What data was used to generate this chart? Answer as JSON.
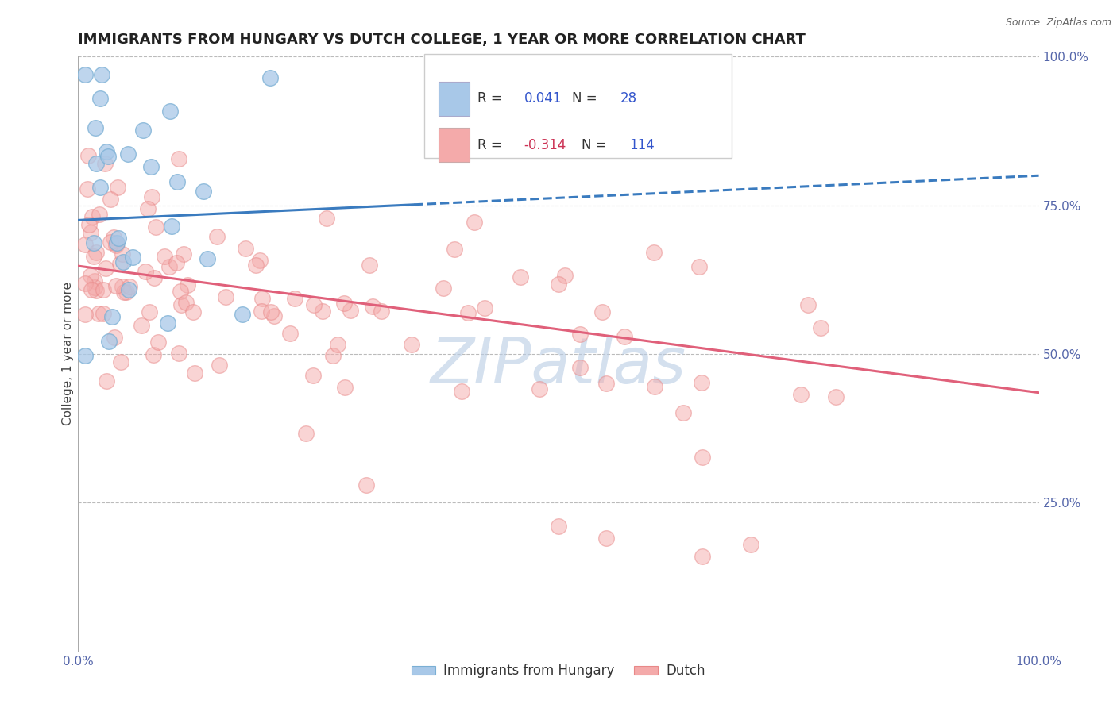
{
  "title": "IMMIGRANTS FROM HUNGARY VS DUTCH COLLEGE, 1 YEAR OR MORE CORRELATION CHART",
  "source_text": "Source: ZipAtlas.com",
  "ylabel": "College, 1 year or more",
  "xlim": [
    0.0,
    1.0
  ],
  "ylim": [
    0.0,
    1.0
  ],
  "blue_scatter_color": "#a8c8e8",
  "blue_scatter_edge": "#7aafd4",
  "pink_scatter_color": "#f4aaaa",
  "pink_scatter_edge": "#e88888",
  "blue_line_color": "#3a7bbf",
  "pink_line_color": "#e0607a",
  "blue_scatter_alpha": 0.75,
  "pink_scatter_alpha": 0.5,
  "background_color": "#ffffff",
  "grid_color": "#bbbbbb",
  "legend_R_blue": "0.041",
  "legend_N_blue": "28",
  "legend_R_pink": "-0.314",
  "legend_N_pink": "114",
  "legend_label_blue": "Immigrants from Hungary",
  "legend_label_pink": "Dutch",
  "watermark_text": "ZIPatlas",
  "title_fontsize": 13,
  "axis_label_fontsize": 11,
  "tick_fontsize": 11,
  "legend_fontsize": 12,
  "blue_line_start_y": 0.725,
  "blue_line_end_y": 0.8,
  "pink_line_start_y": 0.648,
  "pink_line_end_y": 0.435
}
